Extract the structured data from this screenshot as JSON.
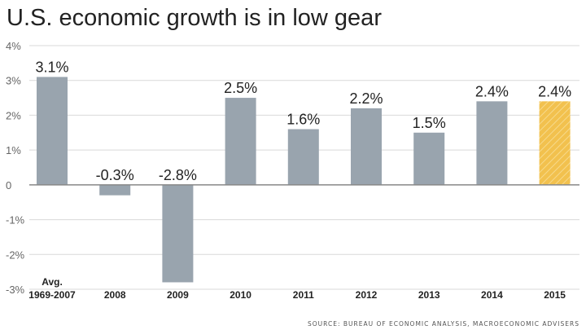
{
  "title": "U.S. economic growth is in low gear",
  "source": "SOURCE: BUREAU OF ECONOMIC ANALYSIS, MACROECONOMIC ADVISERS",
  "colors": {
    "bar": "#99a4ae",
    "highlight": "#f2c14e",
    "grid": "#d9d9d9",
    "zero_line": "#888888"
  },
  "chart_data": {
    "type": "bar",
    "title": "U.S. economic growth is in low gear",
    "xlabel": "",
    "ylabel": "",
    "categories": [
      [
        "Avg.",
        "1969-2007"
      ],
      "2008",
      "2009",
      "2010",
      "2011",
      "2012",
      "2013",
      "2014",
      "2015"
    ],
    "values": [
      3.1,
      -0.3,
      -2.8,
      2.5,
      1.6,
      2.2,
      1.5,
      2.4,
      2.4
    ],
    "data_labels": [
      "3.1%",
      "-0.3%",
      "-2.8%",
      "2.5%",
      "1.6%",
      "2.2%",
      "1.5%",
      "2.4%",
      "2.4%"
    ],
    "highlighted": [
      "2015"
    ],
    "ylim": [
      -3,
      4
    ],
    "yticks": [
      4,
      3,
      2,
      1,
      0,
      -1,
      -2,
      -3
    ],
    "ytick_labels": [
      "4%",
      "3%",
      "2%",
      "1%",
      "0",
      "-1%",
      "-2%",
      "-3%"
    ],
    "grid": true
  }
}
